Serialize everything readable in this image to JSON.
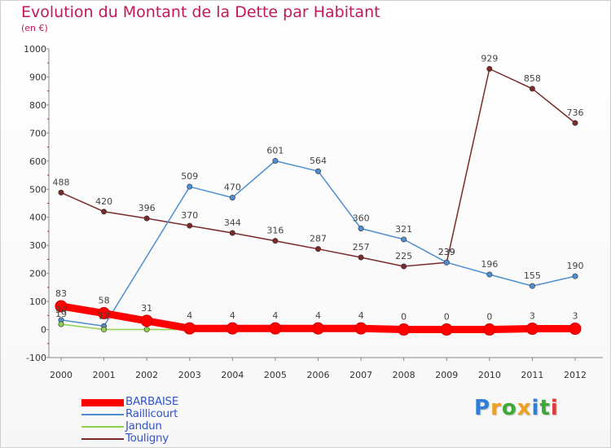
{
  "title": "Evolution du Montant de la Dette par Habitant",
  "subtitle": "(en €)",
  "chart_data": {
    "type": "line",
    "title": "Evolution du Montant de la Dette par Habitant",
    "ylabel": "(en €)",
    "xlabel": "",
    "x": [
      "2000",
      "2001",
      "2002",
      "2003",
      "2004",
      "2005",
      "2006",
      "2007",
      "2008",
      "2009",
      "2010",
      "2011",
      "2012"
    ],
    "ylim": [
      -100,
      1000
    ],
    "yticks": [
      -100,
      0,
      100,
      200,
      300,
      400,
      500,
      600,
      700,
      800,
      900,
      1000
    ],
    "grid": false,
    "legend": "bottom-left",
    "series": [
      {
        "name": "BARBAISE",
        "color": "#ff0000",
        "values": [
          83,
          58,
          31,
          4,
          4,
          4,
          4,
          4,
          0,
          0,
          0,
          3,
          3
        ]
      },
      {
        "name": "Raillicourt",
        "color": "#4f8fd0",
        "values": [
          34,
          12,
          null,
          509,
          470,
          601,
          564,
          360,
          321,
          239,
          196,
          155,
          190
        ]
      },
      {
        "name": "Jandun",
        "color": "#8fd14f",
        "values": [
          19,
          0,
          0,
          0,
          0,
          0,
          0,
          0,
          0,
          0,
          0,
          0,
          0
        ]
      },
      {
        "name": "Touligny",
        "color": "#7b2a2a",
        "values": [
          488,
          420,
          396,
          370,
          344,
          316,
          287,
          257,
          225,
          239,
          929,
          858,
          736
        ]
      }
    ],
    "data_labels": [
      {
        "series": "BARBAISE",
        "values": [
          "83",
          "58",
          "31",
          "4",
          "4",
          "4",
          "4",
          "4",
          "0",
          "0",
          "0",
          "3",
          "3"
        ]
      },
      {
        "series": "Raillicourt",
        "values": [
          "34",
          "12",
          "",
          "509",
          "470",
          "601",
          "564",
          "360",
          "321",
          "239",
          "196",
          "155",
          "190"
        ]
      },
      {
        "series": "Jandun",
        "values": [
          "19",
          "",
          "",
          "",
          "",
          "",
          "",
          "",
          "",
          "",
          "",
          "",
          ""
        ]
      },
      {
        "series": "Touligny",
        "values": [
          "488",
          "420",
          "396",
          "370",
          "344",
          "316",
          "287",
          "257",
          "225",
          "239",
          "929",
          "858",
          "736"
        ]
      }
    ]
  },
  "legend": {
    "items": [
      {
        "name": "BARBAISE",
        "color": "#ff0000"
      },
      {
        "name": "Raillicourt",
        "color": "#4f8fd0"
      },
      {
        "name": "Jandun",
        "color": "#8fd14f"
      },
      {
        "name": "Touligny",
        "color": "#7b2a2a"
      }
    ]
  },
  "logo": {
    "letters": [
      "P",
      "r",
      "o",
      "x",
      "i",
      "t",
      "i"
    ],
    "colors": [
      "#2f7fd6",
      "#f0a020",
      "#3aaa35",
      "#f0a020",
      "#2f7fd6",
      "#3aaa35",
      "#e03a3a"
    ]
  }
}
